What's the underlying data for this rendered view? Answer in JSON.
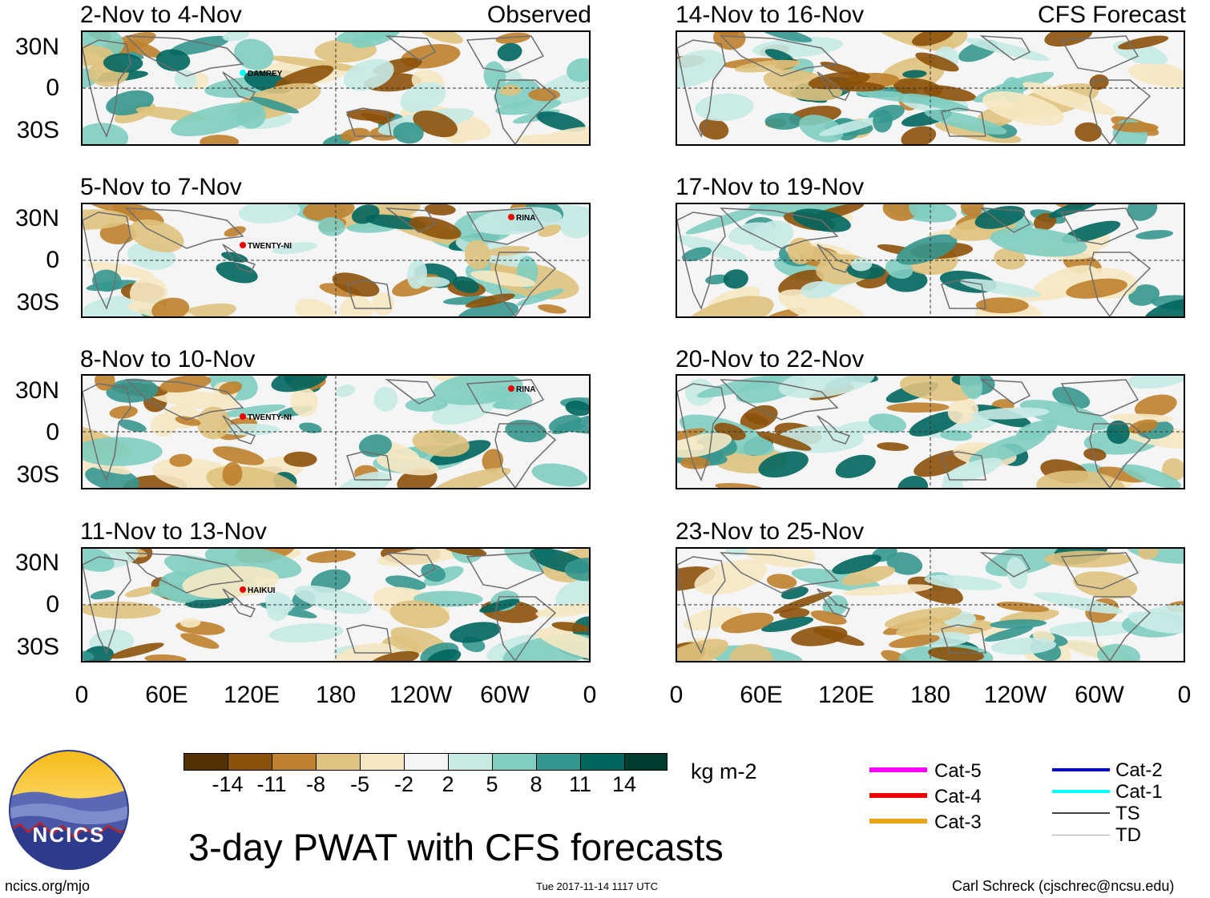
{
  "panels": [
    {
      "title": "2-Nov to 4-Nov",
      "label": "Observed",
      "storms": [
        "DAMREY"
      ]
    },
    {
      "title": "5-Nov to 7-Nov",
      "label": "",
      "storms": [
        "TWENTY-NI",
        "RINA"
      ]
    },
    {
      "title": "8-Nov to 10-Nov",
      "label": "",
      "storms": [
        "TWENTY-NI",
        "RINA"
      ]
    },
    {
      "title": "11-Nov to 13-Nov",
      "label": "",
      "storms": [
        "HAIKUI"
      ]
    },
    {
      "title": "14-Nov to 16-Nov",
      "label": "CFS Forecast",
      "storms": []
    },
    {
      "title": "17-Nov to 19-Nov",
      "label": "",
      "storms": []
    },
    {
      "title": "20-Nov to 22-Nov",
      "label": "",
      "storms": []
    },
    {
      "title": "23-Nov to 25-Nov",
      "label": "",
      "storms": []
    }
  ],
  "lat_labels": [
    "30N",
    "0",
    "30S"
  ],
  "lon_labels": [
    "0",
    "60E",
    "120E",
    "180",
    "120W",
    "60W",
    "0"
  ],
  "colorbar": {
    "colors": [
      "#543005",
      "#8c510a",
      "#bf812d",
      "#dfc27d",
      "#f6e8c3",
      "#f5f5f5",
      "#c7eae5",
      "#80cdc1",
      "#35978f",
      "#01665e",
      "#003c30"
    ],
    "ticks": [
      "-14",
      "-11",
      "-8",
      "-5",
      "-2",
      "2",
      "5",
      "8",
      "11",
      "14"
    ],
    "units": "kg m-2"
  },
  "title": "3-day PWAT with CFS forecasts",
  "logo": {
    "text": "NCICS"
  },
  "url": "ncics.org/mjo",
  "timestamp": "Tue 2017-11-14 1117 UTC",
  "author": "Carl Schreck (cjschrec@ncsu.edu)",
  "legend": [
    {
      "label": "Cat-5",
      "color": "#ff00ff"
    },
    {
      "label": "Cat-4",
      "color": "#ee0000"
    },
    {
      "label": "Cat-3",
      "color": "#e8a317"
    },
    {
      "label": "Cat-2",
      "color": "#0000dd"
    },
    {
      "label": "Cat-1",
      "color": "#00ffff"
    },
    {
      "label": "TS",
      "color": "#444444"
    },
    {
      "label": "TD",
      "color": "#aaaaaa"
    }
  ]
}
